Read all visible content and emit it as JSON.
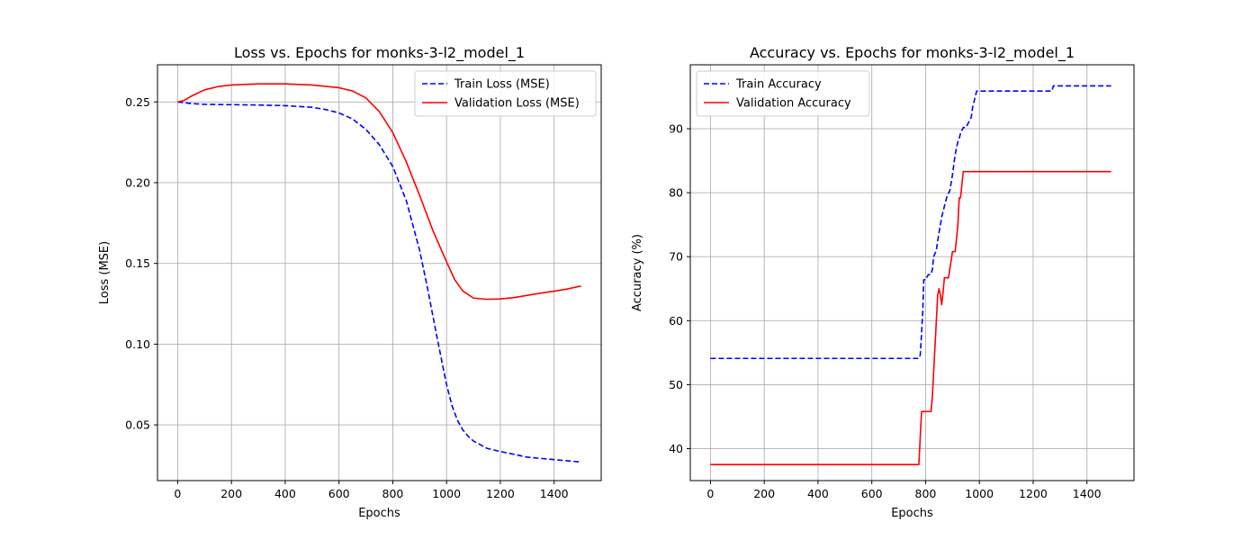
{
  "chart_data": [
    {
      "type": "line",
      "title": "Loss vs. Epochs for monks-3-l2_model_1",
      "xlabel": "Epochs",
      "ylabel": "Loss (MSE)",
      "xlim": [
        -75,
        1575
      ],
      "ylim": [
        0.0155,
        0.273
      ],
      "xticks": [
        0,
        200,
        400,
        600,
        800,
        1000,
        1200,
        1400
      ],
      "yticks": [
        0.05,
        0.1,
        0.15,
        0.2,
        0.25
      ],
      "ytick_labels": [
        "0.05",
        "0.10",
        "0.15",
        "0.20",
        "0.25"
      ],
      "grid": true,
      "legend_position": "top-right",
      "series": [
        {
          "name": "Train Loss (MSE)",
          "color": "#0000ff",
          "style": "dashed",
          "x": [
            0,
            50,
            100,
            200,
            300,
            400,
            500,
            550,
            600,
            650,
            700,
            750,
            800,
            850,
            900,
            930,
            960,
            990,
            1000,
            1020,
            1040,
            1060,
            1080,
            1100,
            1150,
            1200,
            1250,
            1300,
            1400,
            1500
          ],
          "y": [
            0.25,
            0.249,
            0.2485,
            0.2483,
            0.2481,
            0.2477,
            0.2467,
            0.2453,
            0.2432,
            0.2395,
            0.233,
            0.2235,
            0.21,
            0.189,
            0.158,
            0.134,
            0.108,
            0.083,
            0.075,
            0.062,
            0.053,
            0.047,
            0.043,
            0.04,
            0.0355,
            0.0335,
            0.0318,
            0.03,
            0.0285,
            0.027
          ]
        },
        {
          "name": "Validation Loss (MSE)",
          "color": "#ff0000",
          "style": "solid",
          "x": [
            0,
            25,
            50,
            100,
            150,
            200,
            300,
            400,
            500,
            600,
            650,
            700,
            750,
            800,
            850,
            900,
            950,
            1000,
            1030,
            1060,
            1100,
            1150,
            1200,
            1250,
            1300,
            1350,
            1400,
            1450,
            1500
          ],
          "y": [
            0.25,
            0.251,
            0.2535,
            0.2575,
            0.2595,
            0.2605,
            0.2612,
            0.2612,
            0.2605,
            0.2588,
            0.2568,
            0.2525,
            0.244,
            0.231,
            0.213,
            0.192,
            0.17,
            0.151,
            0.14,
            0.133,
            0.1285,
            0.1278,
            0.128,
            0.1288,
            0.1302,
            0.1316,
            0.1328,
            0.1342,
            0.136
          ]
        }
      ]
    },
    {
      "type": "line",
      "title": "Accuracy vs. Epochs for monks-3-l2_model_1",
      "xlabel": "Epochs",
      "ylabel": "Accuracy (%)",
      "xlim": [
        -75,
        1575
      ],
      "ylim": [
        35.0,
        100.0
      ],
      "xticks": [
        0,
        200,
        400,
        600,
        800,
        1000,
        1200,
        1400
      ],
      "yticks": [
        40,
        50,
        60,
        70,
        80,
        90
      ],
      "ytick_labels": [
        "40",
        "50",
        "60",
        "70",
        "80",
        "90"
      ],
      "grid": true,
      "legend_position": "top-left",
      "series": [
        {
          "name": "Train Accuracy",
          "color": "#0000ff",
          "style": "dashed",
          "x": [
            0,
            775,
            780,
            785,
            790,
            793,
            800,
            810,
            820,
            825,
            830,
            840,
            845,
            850,
            860,
            870,
            880,
            890,
            900,
            905,
            910,
            920,
            925,
            930,
            940,
            950,
            960,
            970,
            975,
            980,
            985,
            990,
            1000,
            1270,
            1275,
            1280,
            1490
          ],
          "y": [
            54.1,
            54.1,
            54.6,
            58.0,
            62.0,
            66.4,
            66.4,
            67.2,
            67.2,
            68.0,
            70.0,
            71.0,
            72.5,
            73.8,
            76.2,
            77.9,
            79.5,
            80.3,
            82.8,
            84.4,
            86.0,
            88.0,
            88.5,
            89.3,
            90.2,
            90.2,
            91.0,
            91.8,
            93.4,
            94.2,
            95.1,
            95.9,
            95.9,
            95.9,
            96.7,
            96.7,
            96.7
          ]
        },
        {
          "name": "Validation Accuracy",
          "color": "#ff0000",
          "style": "solid",
          "x": [
            0,
            775,
            780,
            785,
            790,
            800,
            820,
            825,
            830,
            835,
            840,
            845,
            850,
            855,
            860,
            865,
            870,
            880,
            885,
            890,
            900,
            905,
            910,
            920,
            925,
            930,
            940,
            945,
            950,
            1000,
            1490
          ],
          "y": [
            37.5,
            37.5,
            41.7,
            45.8,
            45.8,
            45.8,
            45.8,
            48.0,
            52.0,
            56.0,
            60.0,
            64.0,
            65.0,
            64.0,
            62.5,
            64.5,
            66.7,
            66.7,
            66.7,
            68.0,
            70.8,
            70.8,
            70.8,
            75.0,
            79.2,
            79.2,
            83.3,
            83.3,
            83.3,
            83.3,
            83.3
          ]
        }
      ]
    }
  ]
}
